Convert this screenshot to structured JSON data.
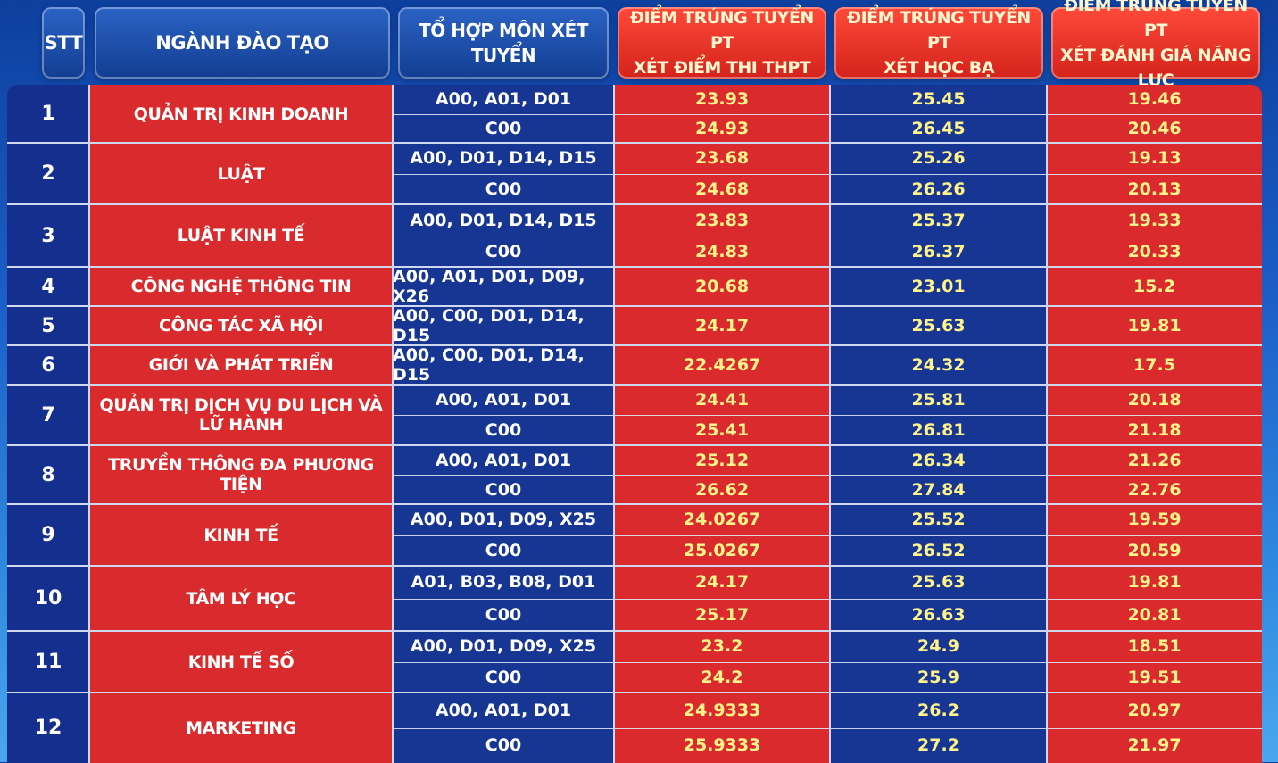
{
  "headers": {
    "stt": "STT",
    "major": "NGÀNH ĐÀO TẠO",
    "combo": "TỔ HỢP MÔN XÉT TUYỂN",
    "thpt_line1": "ĐIỂM TRÚNG TUYỂN PT",
    "thpt_line2": "XÉT ĐIỂM THI THPT",
    "hocba_line1": "ĐIỂM TRÚNG TUYỂN PT",
    "hocba_line2": "XÉT HỌC BẠ",
    "dgnl_line1": "ĐIỂM TRÚNG TUYỂN PT",
    "dgnl_line2": "XÉT ĐÁNH GIÁ NĂNG LỰC"
  },
  "rows": [
    {
      "stt": "1",
      "major": "QUẢN TRỊ KINH DOANH",
      "subs": [
        {
          "combo": "A00, A01, D01",
          "thpt": "23.93",
          "hocba": "25.45",
          "dgnl": "19.46"
        },
        {
          "combo": "C00",
          "thpt": "24.93",
          "hocba": "26.45",
          "dgnl": "20.46"
        }
      ]
    },
    {
      "stt": "2",
      "major": "LUẬT",
      "subs": [
        {
          "combo": "A00, D01, D14, D15",
          "thpt": "23.68",
          "hocba": "25.26",
          "dgnl": "19.13"
        },
        {
          "combo": "C00",
          "thpt": "24.68",
          "hocba": "26.26",
          "dgnl": "20.13"
        }
      ]
    },
    {
      "stt": "3",
      "major": "LUẬT KINH TẾ",
      "subs": [
        {
          "combo": "A00, D01, D14, D15",
          "thpt": "23.83",
          "hocba": "25.37",
          "dgnl": "19.33"
        },
        {
          "combo": "C00",
          "thpt": "24.83",
          "hocba": "26.37",
          "dgnl": "20.33"
        }
      ]
    },
    {
      "stt": "4",
      "major": "CÔNG NGHỆ THÔNG TIN",
      "subs": [
        {
          "combo": "A00, A01, D01, D09, X26",
          "thpt": "20.68",
          "hocba": "23.01",
          "dgnl": "15.2"
        }
      ]
    },
    {
      "stt": "5",
      "major": "CÔNG TÁC XÃ HỘI",
      "subs": [
        {
          "combo": "A00, C00, D01, D14, D15",
          "thpt": "24.17",
          "hocba": "25.63",
          "dgnl": "19.81"
        }
      ]
    },
    {
      "stt": "6",
      "major": "GIỚI VÀ PHÁT TRIỂN",
      "subs": [
        {
          "combo": "A00, C00, D01, D14, D15",
          "thpt": "22.4267",
          "hocba": "24.32",
          "dgnl": "17.5"
        }
      ]
    },
    {
      "stt": "7",
      "major": "QUẢN TRỊ DỊCH VỤ DU LỊCH VÀ LỮ HÀNH",
      "subs": [
        {
          "combo": "A00, A01, D01",
          "thpt": "24.41",
          "hocba": "25.81",
          "dgnl": "20.18"
        },
        {
          "combo": "C00",
          "thpt": "25.41",
          "hocba": "26.81",
          "dgnl": "21.18"
        }
      ]
    },
    {
      "stt": "8",
      "major": "TRUYỀN THÔNG ĐA PHƯƠNG TIỆN",
      "subs": [
        {
          "combo": "A00, A01, D01",
          "thpt": "25.12",
          "hocba": "26.34",
          "dgnl": "21.26"
        },
        {
          "combo": "C00",
          "thpt": "26.62",
          "hocba": "27.84",
          "dgnl": "22.76"
        }
      ]
    },
    {
      "stt": "9",
      "major": "KINH TẾ",
      "subs": [
        {
          "combo": "A00, D01, D09, X25",
          "thpt": "24.0267",
          "hocba": "25.52",
          "dgnl": "19.59"
        },
        {
          "combo": "C00",
          "thpt": "25.0267",
          "hocba": "26.52",
          "dgnl": "20.59"
        }
      ]
    },
    {
      "stt": "10",
      "major": "TÂM LÝ HỌC",
      "subs": [
        {
          "combo": "A01, B03, B08, D01",
          "thpt": "24.17",
          "hocba": "25.63",
          "dgnl": "19.81"
        },
        {
          "combo": "C00",
          "thpt": "25.17",
          "hocba": "26.63",
          "dgnl": "20.81"
        }
      ]
    },
    {
      "stt": "11",
      "major": "KINH TẾ SỐ",
      "subs": [
        {
          "combo": "A00, D01, D09, X25",
          "thpt": "23.2",
          "hocba": "24.9",
          "dgnl": "18.51"
        },
        {
          "combo": "C00",
          "thpt": "24.2",
          "hocba": "25.9",
          "dgnl": "19.51"
        }
      ]
    },
    {
      "stt": "12",
      "major": "MARKETING",
      "subs": [
        {
          "combo": "A00, A01, D01",
          "thpt": "24.9333",
          "hocba": "26.2",
          "dgnl": "20.97"
        },
        {
          "combo": "C00",
          "thpt": "25.9333",
          "hocba": "27.2",
          "dgnl": "21.97"
        }
      ]
    }
  ]
}
